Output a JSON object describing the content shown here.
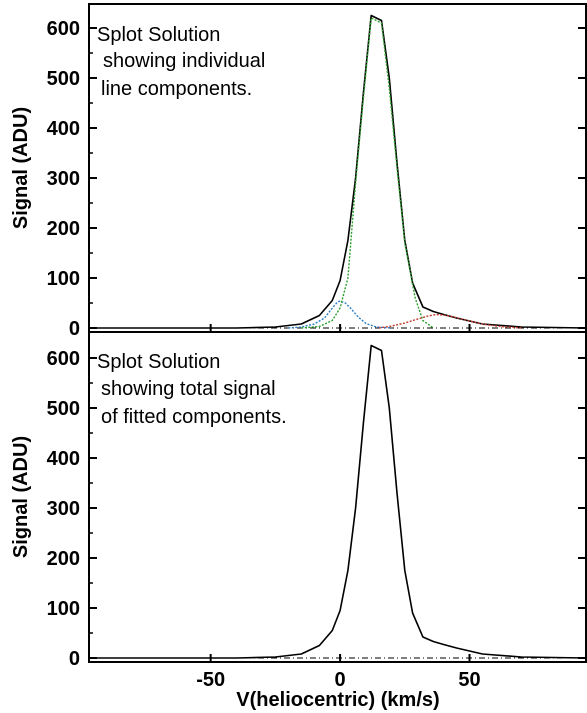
{
  "chart_data": [
    {
      "type": "line",
      "title": "",
      "ylabel": "Signal (ADU)",
      "xlabel": "",
      "xlim": [
        -97,
        95
      ],
      "ylim": [
        0,
        650
      ],
      "yticks": [
        0,
        100,
        200,
        300,
        400,
        500,
        600
      ],
      "annotation": [
        "Splot Solution",
        "showing individual",
        "line components."
      ],
      "series": [
        {
          "color": "#000000",
          "x": [
            -97,
            -40,
            -25,
            -15,
            -8,
            -3,
            0,
            3,
            6,
            9,
            12,
            16,
            19,
            22,
            25,
            28,
            32,
            36,
            40,
            45,
            55,
            70,
            95
          ],
          "y": [
            0,
            0,
            2,
            8,
            25,
            55,
            95,
            175,
            300,
            470,
            625,
            615,
            500,
            330,
            175,
            90,
            42,
            33,
            27,
            20,
            8,
            2,
            0
          ]
        },
        {
          "color": "#2a7fc4",
          "x": [
            -20,
            -15,
            -10,
            -6,
            -3,
            -1,
            0,
            2,
            4,
            7,
            10,
            14,
            20
          ],
          "y": [
            0,
            2,
            8,
            20,
            40,
            52,
            54,
            50,
            40,
            22,
            9,
            2,
            0
          ]
        },
        {
          "color": "#2aa02a",
          "x": [
            -15,
            -8,
            -3,
            0,
            3,
            6,
            9,
            12,
            16,
            19,
            22,
            25,
            29,
            32,
            36
          ],
          "y": [
            0,
            3,
            15,
            40,
            100,
            290,
            460,
            620,
            610,
            480,
            320,
            170,
            60,
            15,
            0
          ]
        },
        {
          "color": "#c0392b",
          "x": [
            15,
            20,
            25,
            30,
            34,
            37,
            40,
            44,
            50,
            56,
            62,
            70
          ],
          "y": [
            0,
            4,
            10,
            18,
            24,
            27,
            26,
            22,
            14,
            7,
            3,
            0
          ]
        }
      ]
    },
    {
      "type": "line",
      "title": "",
      "ylabel": "Signal (ADU)",
      "xlabel": "V(heliocentric) (km/s)",
      "xlim": [
        -97,
        95
      ],
      "ylim": [
        0,
        650
      ],
      "yticks": [
        0,
        100,
        200,
        300,
        400,
        500,
        600
      ],
      "xticks": [
        -50,
        0,
        50
      ],
      "annotation": [
        "Splot Solution",
        "showing total signal",
        "of fitted components."
      ],
      "series": [
        {
          "color": "#000000",
          "x": [
            -97,
            -40,
            -25,
            -15,
            -8,
            -3,
            0,
            3,
            6,
            9,
            12,
            16,
            19,
            22,
            25,
            28,
            32,
            36,
            40,
            45,
            55,
            70,
            95
          ],
          "y": [
            0,
            0,
            2,
            8,
            25,
            55,
            95,
            175,
            300,
            470,
            625,
            615,
            500,
            330,
            175,
            90,
            42,
            33,
            27,
            20,
            8,
            2,
            0
          ]
        }
      ]
    }
  ]
}
